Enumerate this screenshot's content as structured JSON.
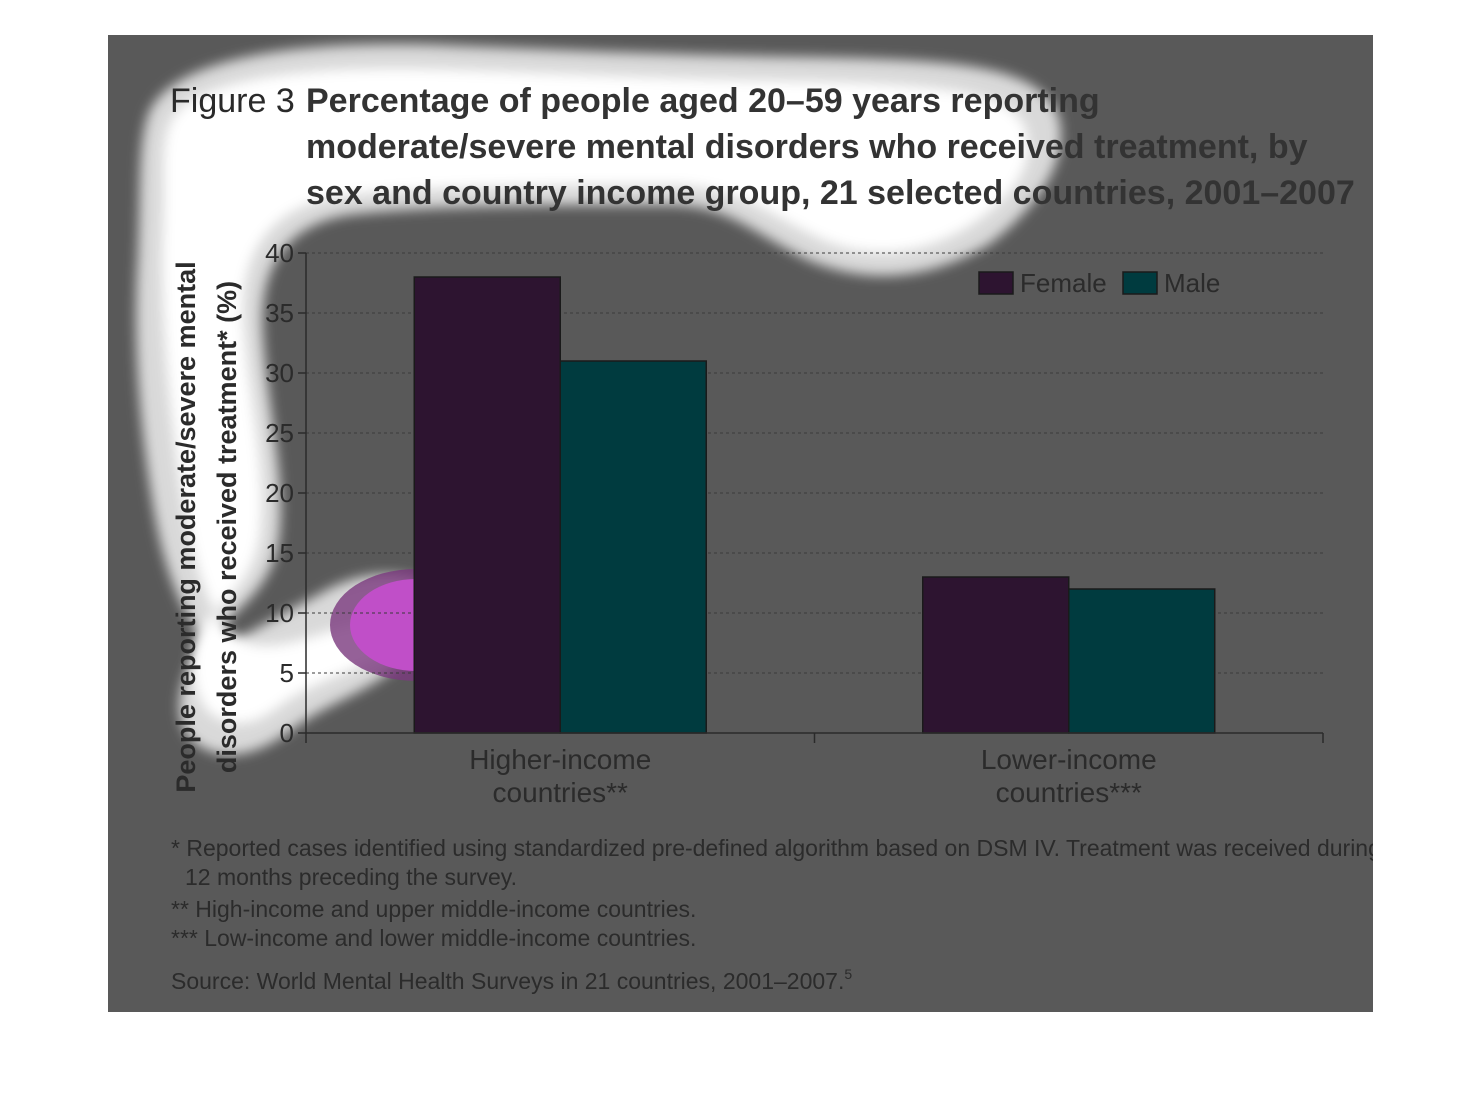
{
  "figure": {
    "label": "Figure 3",
    "title_lines": [
      "Percentage of people aged 20–59 years reporting",
      "moderate/severe mental disorders who received treatment, by",
      "sex and country income group, 21 selected countries, 2001–2007"
    ]
  },
  "chart_data": {
    "type": "bar",
    "title": "Percentage of people aged 20–59 years reporting moderate/severe mental disorders who received treatment, by sex and country income group, 21 selected countries, 2001–2007",
    "xlabel": "",
    "ylabel_lines": [
      "People reporting moderate/severe mental",
      "disorders who received treatment* (%)"
    ],
    "categories": [
      [
        "Higher-income",
        "countries**"
      ],
      [
        "Lower-income",
        "countries***"
      ]
    ],
    "series": [
      {
        "name": "Female",
        "color": "#2d1430",
        "values": [
          38,
          13
        ]
      },
      {
        "name": "Male",
        "color": "#003b3f",
        "values": [
          31,
          12
        ]
      }
    ],
    "ylim": [
      0,
      40
    ],
    "yticks": [
      0,
      5,
      10,
      15,
      20,
      25,
      30,
      35,
      40
    ],
    "grid": true,
    "legend_position": "top-right"
  },
  "notes": [
    "* Reported cases identified using standardized pre-defined algorithm based on DSM IV. Treatment was received during",
    "12 months preceding the survey.",
    "** High-income and upper middle-income countries.",
    "*** Low-income and lower middle-income countries."
  ],
  "source": {
    "text": "Source: World Mental Health Surveys in 21 countries, 2001–2007.",
    "superscript": "5"
  },
  "colors": {
    "panel_background": "#595959",
    "highlight_glow": "#ffffff",
    "highlight_core": "#c04fc8"
  }
}
